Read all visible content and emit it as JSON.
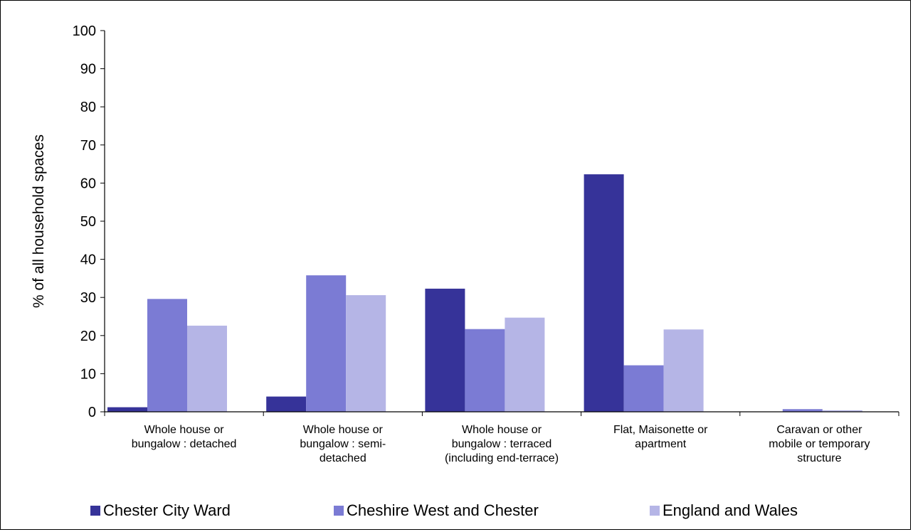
{
  "chart_data": {
    "type": "bar",
    "title": "",
    "xlabel": "",
    "ylabel": "% of all household spaces",
    "ylim": [
      0,
      100
    ],
    "yticks": [
      0,
      10,
      20,
      30,
      40,
      50,
      60,
      70,
      80,
      90,
      100
    ],
    "grid": false,
    "legend_position": "bottom",
    "categories": [
      [
        "Whole house or",
        "bungalow : detached"
      ],
      [
        "Whole house or",
        "bungalow : semi-",
        "detached"
      ],
      [
        "Whole house or",
        "bungalow : terraced",
        "(including end-terrace)"
      ],
      [
        "Flat, Maisonette or",
        "apartment"
      ],
      [
        "Caravan or other",
        "mobile or temporary",
        "structure"
      ]
    ],
    "series": [
      {
        "name": "Chester City Ward",
        "color": "#363399",
        "values": [
          1.2,
          4.0,
          32.3,
          62.3,
          0.0
        ]
      },
      {
        "name": "Cheshire West and Chester",
        "color": "#7b7bd4",
        "values": [
          29.6,
          35.8,
          21.7,
          12.2,
          0.7
        ]
      },
      {
        "name": "England and Wales",
        "color": "#b5b5e6",
        "values": [
          22.6,
          30.6,
          24.7,
          21.6,
          0.4
        ]
      }
    ]
  }
}
